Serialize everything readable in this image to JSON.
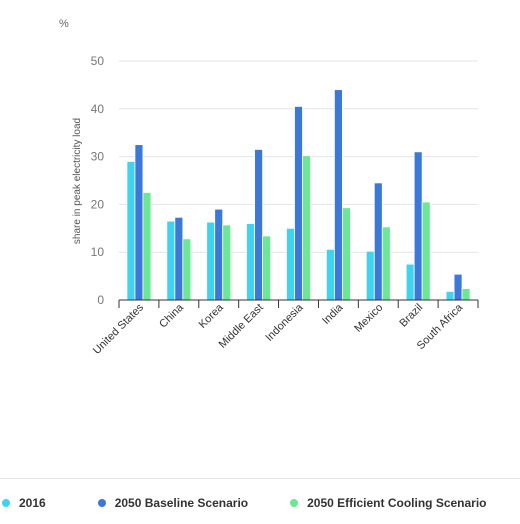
{
  "chart_data": {
    "type": "bar",
    "unit": "%",
    "ylabel": "share in peak electricity load",
    "ylim": [
      0,
      50
    ],
    "yticks": [
      0,
      10,
      20,
      30,
      40,
      50
    ],
    "grid": true,
    "legend_position": "bottom",
    "categories": [
      "United States",
      "China",
      "Korea",
      "Middle East",
      "Indonesia",
      "India",
      "Mexico",
      "Brazil",
      "South Africa"
    ],
    "series": [
      {
        "name": "2016",
        "color": "#3fd3f2",
        "values": [
          29,
          16.5,
          16.3,
          16,
          15,
          10.6,
          10.2,
          7.5,
          1.8
        ]
      },
      {
        "name": "2050 Baseline Scenario",
        "color": "#3b78d8",
        "values": [
          32.5,
          17.3,
          19,
          31.5,
          40.5,
          44,
          24.5,
          31,
          5.4
        ]
      },
      {
        "name": "2050 Efficient Cooling Scenario",
        "color": "#6be796",
        "values": [
          22.5,
          12.8,
          15.7,
          13.4,
          30.2,
          19.3,
          15.3,
          20.5,
          2.4
        ]
      }
    ]
  }
}
